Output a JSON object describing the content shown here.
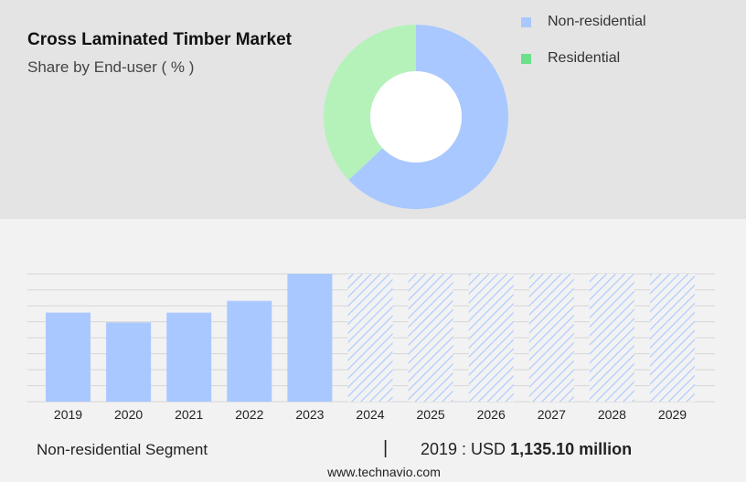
{
  "header": {
    "title": "Cross Laminated Timber Market",
    "subtitle": "Share by End-user ( % )"
  },
  "colors": {
    "non_residential": "#a9c8ff",
    "residential": "#b5f2ba",
    "residential_legend": "#6be08a",
    "forecast_hatch": "#a9c8ff"
  },
  "chart_data": [
    {
      "type": "pie",
      "variant": "donut",
      "title": "",
      "labels": [
        "Non-residential",
        "Residential"
      ],
      "values": [
        63,
        37
      ],
      "legend": {
        "position": "top-right",
        "entries": [
          "Non-residential",
          "Residential"
        ]
      }
    },
    {
      "type": "bar",
      "title": "",
      "xlabel": "",
      "ylabel": "",
      "categories": [
        "2019",
        "2020",
        "2021",
        "2022",
        "2023",
        "2024",
        "2025",
        "2026",
        "2027",
        "2028",
        "2029"
      ],
      "values": [
        1135.1,
        1010,
        1135,
        1285,
        1630,
        1630,
        1630,
        1630,
        1630,
        1630,
        1630
      ],
      "forecast_from": "2024",
      "ylim": [
        0,
        1630
      ],
      "grid": true
    }
  ],
  "footer": {
    "segment": "Non-residential Segment",
    "divider": "|",
    "value_prefix": "2019 : USD",
    "value_amount": "1,135.10 million",
    "source": "www.technavio.com"
  }
}
